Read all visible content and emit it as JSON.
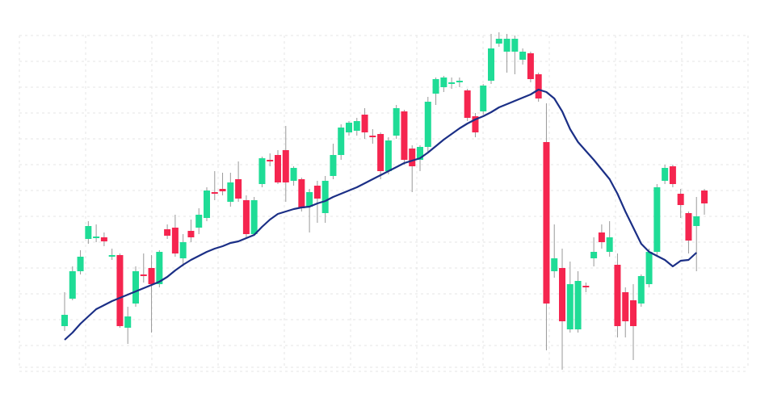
{
  "chart_data": {
    "type": "candlestick",
    "ylim": [
      0,
      460
    ],
    "grid": true,
    "up_color": "#1fdc96",
    "down_color": "#f5254f",
    "open": [
      56,
      90,
      124,
      164,
      165,
      166,
      142,
      144,
      54,
      84,
      120,
      128,
      108,
      176,
      178,
      140,
      174,
      178,
      190,
      222,
      226,
      210,
      238,
      212,
      170,
      232,
      262,
      268,
      274,
      236,
      238,
      204,
      230,
      196,
      242,
      268,
      296,
      298,
      318,
      292,
      294,
      248,
      292,
      322,
      276,
      262,
      278,
      344,
      352,
      356,
      358,
      348,
      316,
      322,
      360,
      406,
      396,
      396,
      386,
      394,
      368,
      284,
      124,
      128,
      52,
      52,
      106,
      140,
      172,
      148,
      132,
      98,
      88,
      84,
      108,
      148,
      236,
      254,
      220,
      196,
      180,
      224
    ],
    "high": [
      98,
      130,
      150,
      186,
      182,
      172,
      152,
      146,
      80,
      130,
      146,
      144,
      150,
      182,
      194,
      170,
      188,
      202,
      228,
      248,
      246,
      246,
      260,
      218,
      216,
      266,
      270,
      274,
      304,
      254,
      240,
      226,
      236,
      242,
      282,
      306,
      310,
      314,
      326,
      300,
      296,
      290,
      330,
      324,
      280,
      280,
      340,
      364,
      366,
      364,
      364,
      350,
      320,
      356,
      418,
      420,
      418,
      416,
      400,
      396,
      370,
      332,
      182,
      152,
      136,
      124,
      110,
      166,
      182,
      186,
      146,
      104,
      108,
      120,
      152,
      232,
      256,
      256,
      226,
      198,
      216,
      226
    ],
    "low": [
      50,
      88,
      120,
      158,
      160,
      155,
      138,
      54,
      34,
      80,
      110,
      48,
      104,
      164,
      142,
      130,
      160,
      170,
      186,
      212,
      218,
      204,
      210,
      166,
      168,
      228,
      254,
      232,
      210,
      230,
      198,
      172,
      184,
      184,
      238,
      262,
      292,
      292,
      288,
      282,
      238,
      244,
      288,
      256,
      222,
      248,
      272,
      330,
      346,
      350,
      352,
      310,
      290,
      318,
      356,
      402,
      370,
      368,
      380,
      358,
      334,
      26,
      116,
      2,
      48,
      48,
      98,
      130,
      152,
      142,
      42,
      42,
      14,
      80,
      104,
      144,
      232,
      228,
      190,
      146,
      124,
      194
    ],
    "close": [
      70,
      124,
      142,
      180,
      167,
      161,
      144,
      56,
      68,
      124,
      118,
      108,
      148,
      168,
      146,
      160,
      166,
      194,
      224,
      220,
      223,
      234,
      214,
      170,
      212,
      264,
      260,
      234,
      234,
      252,
      202,
      222,
      214,
      236,
      268,
      302,
      308,
      310,
      296,
      290,
      248,
      286,
      326,
      262,
      254,
      278,
      334,
      362,
      364,
      358,
      360,
      314,
      296,
      354,
      400,
      412,
      412,
      412,
      396,
      362,
      338,
      84,
      140,
      62,
      108,
      112,
      104,
      148,
      160,
      166,
      56,
      62,
      56,
      118,
      148,
      228,
      252,
      232,
      206,
      162,
      192,
      208
    ],
    "line": {
      "color": "#1b2f86",
      "values": [
        39,
        48,
        59,
        68,
        77,
        82,
        87,
        91,
        95,
        99,
        103,
        107,
        111,
        117,
        125,
        132,
        138,
        143,
        148,
        152,
        155,
        159,
        161,
        165,
        169,
        179,
        188,
        195,
        198,
        201,
        203,
        204,
        208,
        211,
        216,
        220,
        224,
        228,
        233,
        238,
        243,
        248,
        253,
        258,
        261,
        264,
        271,
        279,
        287,
        294,
        301,
        307,
        312,
        316,
        321,
        327,
        331,
        335,
        339,
        343,
        349,
        346,
        338,
        322,
        300,
        284,
        273,
        262,
        250,
        238,
        220,
        198,
        178,
        158,
        148,
        143,
        138,
        130,
        137,
        138,
        147,
        null
      ]
    }
  }
}
